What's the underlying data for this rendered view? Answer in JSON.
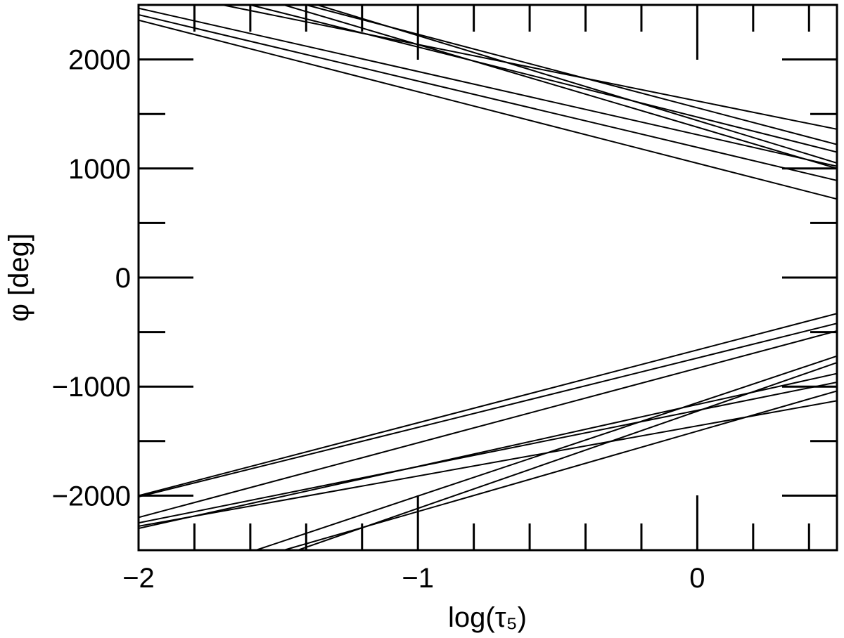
{
  "chart_data": {
    "type": "line",
    "xlabel": "log(τ₅)",
    "ylabel": "φ [deg]",
    "xlim": [
      -2,
      0.5
    ],
    "ylim": [
      -2500,
      2500
    ],
    "grid": false,
    "x_ticks": [
      {
        "value": -2,
        "label": "−2"
      },
      {
        "value": -1,
        "label": "−1"
      },
      {
        "value": 0,
        "label": "0"
      }
    ],
    "y_ticks": [
      {
        "value": 2000,
        "label": "2000"
      },
      {
        "value": 1000,
        "label": "1000"
      },
      {
        "value": 0,
        "label": "0"
      },
      {
        "value": -1000,
        "label": "−1000"
      },
      {
        "value": -2000,
        "label": "−2000"
      }
    ],
    "x_minor_step": 0.2,
    "y_minor_step": 500,
    "series": [
      {
        "x": [
          -2.0,
          0.5
        ],
        "y": [
          2470,
          1020
        ]
      },
      {
        "x": [
          -2.0,
          0.5
        ],
        "y": [
          2410,
          890
        ]
      },
      {
        "x": [
          -2.0,
          0.5
        ],
        "y": [
          2360,
          720
        ]
      },
      {
        "x": [
          -1.6,
          0.5
        ],
        "y": [
          2500,
          1150
        ]
      },
      {
        "x": [
          -1.48,
          0.5
        ],
        "y": [
          2500,
          1000
        ]
      },
      {
        "x": [
          -1.36,
          0.5
        ],
        "y": [
          2500,
          1050
        ]
      },
      {
        "x": [
          -1.7,
          0.5
        ],
        "y": [
          2500,
          1360
        ]
      },
      {
        "x": [
          -1.4,
          0.5
        ],
        "y": [
          2500,
          1220
        ]
      },
      {
        "x": [
          -2.0,
          0.5
        ],
        "y": [
          -2000,
          -330
        ]
      },
      {
        "x": [
          -2.0,
          0.5
        ],
        "y": [
          -2010,
          -420
        ]
      },
      {
        "x": [
          -2.0,
          0.5
        ],
        "y": [
          -2200,
          -490
        ]
      },
      {
        "x": [
          -2.0,
          0.5
        ],
        "y": [
          -2250,
          -960
        ]
      },
      {
        "x": [
          -2.0,
          0.5
        ],
        "y": [
          -2300,
          -880
        ]
      },
      {
        "x": [
          -2.0,
          0.5
        ],
        "y": [
          -2280,
          -1130
        ]
      },
      {
        "x": [
          -1.58,
          0.5
        ],
        "y": [
          -2500,
          -720
        ]
      },
      {
        "x": [
          -1.43,
          0.5
        ],
        "y": [
          -2500,
          -780
        ]
      },
      {
        "x": [
          -1.48,
          0.5
        ],
        "y": [
          -2500,
          -1040
        ]
      }
    ]
  }
}
